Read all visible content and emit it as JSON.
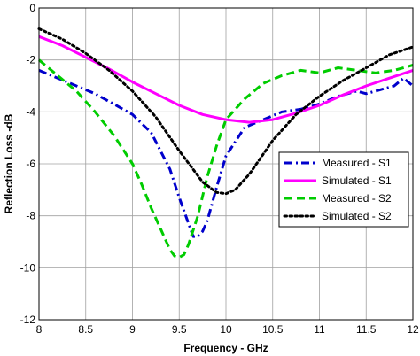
{
  "chart_data": {
    "type": "line",
    "title": "",
    "xlabel": "Frequency - GHz",
    "ylabel": "Reflection Loss -dB",
    "xlim": [
      8,
      12
    ],
    "ylim": [
      -12,
      0
    ],
    "xticks": [
      8,
      8.5,
      9,
      9.5,
      10,
      10.5,
      11,
      11.5,
      12
    ],
    "xtick_labels": [
      "8",
      "8.5",
      "9",
      "9.5",
      "10",
      "10.5",
      "11",
      "11.5",
      "12"
    ],
    "yticks": [
      0,
      -2,
      -4,
      -6,
      -8,
      -10,
      -12
    ],
    "ytick_labels": [
      "0",
      "-2",
      "-4",
      "-6",
      "-8",
      "-10",
      "-12"
    ],
    "grid": true,
    "legend_position": "center-right",
    "series": [
      {
        "name": "Measured - S1",
        "color": "#0000cc",
        "style": "dash-dot",
        "x": [
          8.0,
          8.2,
          8.4,
          8.6,
          8.8,
          9.0,
          9.2,
          9.4,
          9.5,
          9.6,
          9.65,
          9.7,
          9.75,
          9.8,
          9.9,
          10.0,
          10.2,
          10.4,
          10.6,
          10.8,
          11.0,
          11.2,
          11.4,
          11.5,
          11.6,
          11.8,
          11.9,
          12.0
        ],
        "y": [
          -2.4,
          -2.7,
          -3.0,
          -3.3,
          -3.7,
          -4.1,
          -4.8,
          -6.2,
          -7.3,
          -8.3,
          -8.8,
          -8.8,
          -8.6,
          -8.2,
          -6.9,
          -5.7,
          -4.6,
          -4.3,
          -4.0,
          -3.9,
          -3.7,
          -3.4,
          -3.2,
          -3.3,
          -3.2,
          -3.0,
          -2.7,
          -3.0
        ]
      },
      {
        "name": "Simulated - S1",
        "color": "#ff00ff",
        "style": "solid",
        "x": [
          8.0,
          8.25,
          8.5,
          8.75,
          9.0,
          9.25,
          9.5,
          9.75,
          10.0,
          10.25,
          10.5,
          10.75,
          11.0,
          11.25,
          11.5,
          11.75,
          12.0
        ],
        "y": [
          -1.1,
          -1.45,
          -1.9,
          -2.35,
          -2.85,
          -3.3,
          -3.75,
          -4.1,
          -4.3,
          -4.4,
          -4.3,
          -4.05,
          -3.75,
          -3.35,
          -3.0,
          -2.7,
          -2.4
        ]
      },
      {
        "name": "Measured - S2",
        "color": "#00cc00",
        "style": "dash",
        "x": [
          8.0,
          8.2,
          8.4,
          8.6,
          8.8,
          9.0,
          9.1,
          9.2,
          9.3,
          9.4,
          9.45,
          9.5,
          9.55,
          9.6,
          9.7,
          9.8,
          9.9,
          10.0,
          10.2,
          10.4,
          10.6,
          10.8,
          11.0,
          11.2,
          11.4,
          11.6,
          11.8,
          12.0
        ],
        "y": [
          -2.0,
          -2.6,
          -3.2,
          -4.0,
          -4.9,
          -6.0,
          -6.8,
          -7.7,
          -8.5,
          -9.3,
          -9.55,
          -9.6,
          -9.5,
          -9.1,
          -8.0,
          -6.5,
          -5.3,
          -4.3,
          -3.5,
          -2.9,
          -2.6,
          -2.4,
          -2.5,
          -2.3,
          -2.4,
          -2.5,
          -2.4,
          -2.2
        ]
      },
      {
        "name": "Simulated - S2",
        "color": "#000000",
        "style": "dot",
        "x": [
          8.0,
          8.25,
          8.5,
          8.75,
          9.0,
          9.25,
          9.5,
          9.75,
          9.9,
          10.0,
          10.1,
          10.25,
          10.5,
          10.75,
          11.0,
          11.25,
          11.5,
          11.75,
          12.0
        ],
        "y": [
          -0.8,
          -1.2,
          -1.75,
          -2.4,
          -3.2,
          -4.2,
          -5.5,
          -6.7,
          -7.1,
          -7.15,
          -7.0,
          -6.4,
          -5.1,
          -4.1,
          -3.4,
          -2.8,
          -2.3,
          -1.8,
          -1.5
        ]
      }
    ]
  }
}
